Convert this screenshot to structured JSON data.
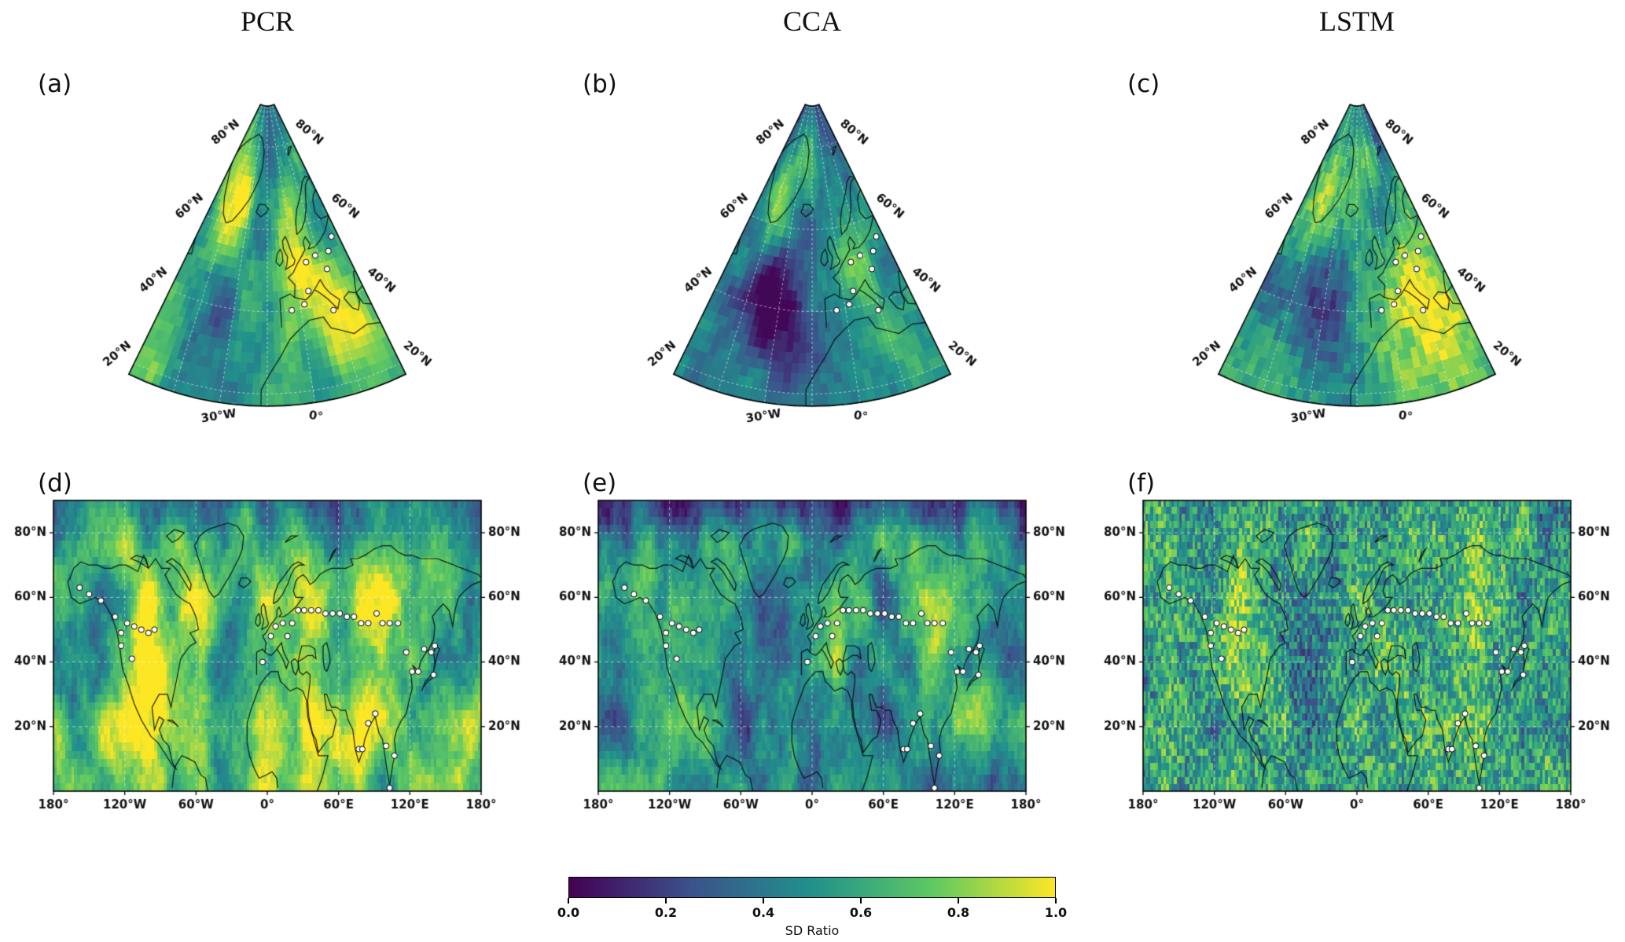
{
  "figure": {
    "column_titles": [
      "PCR",
      "CCA",
      "LSTM"
    ],
    "panel_letters": [
      "(a)",
      "(b)",
      "(c)",
      "(d)",
      "(e)",
      "(f)"
    ],
    "conic_axis": {
      "lat_labels": [
        "80°N",
        "60°N",
        "40°N",
        "20°N"
      ],
      "lat_values": [
        80,
        60,
        40,
        20
      ],
      "lon_labels": [
        "30°W",
        "0°"
      ],
      "lon_values": [
        -30,
        0
      ],
      "grid_lons": [
        -60,
        -45,
        -30,
        -15,
        0,
        15,
        30
      ],
      "grid_lats": [
        20,
        40,
        60,
        80
      ]
    },
    "rect_axis": {
      "lat_labels": [
        "80°N",
        "60°N",
        "40°N",
        "20°N"
      ],
      "lat_values": [
        80,
        60,
        40,
        20
      ],
      "lon_labels": [
        "180°",
        "120°W",
        "60°W",
        "0°",
        "60°E",
        "120°E",
        "180°"
      ],
      "lon_values": [
        -180,
        -120,
        -60,
        0,
        60,
        120,
        180
      ],
      "grid_lons": [
        -120,
        -60,
        0,
        60,
        120
      ],
      "grid_lats": [
        20,
        40,
        60,
        80
      ]
    },
    "colorbar": {
      "label": "SD Ratio",
      "tick_labels": [
        "0.0",
        "0.2",
        "0.4",
        "0.6",
        "0.8",
        "1.0"
      ],
      "tick_values": [
        0,
        0.2,
        0.4,
        0.6,
        0.8,
        1
      ],
      "colors": [
        "#440154",
        "#3b528b",
        "#21918c",
        "#5ec962",
        "#fde725"
      ]
    }
  },
  "chart_data": {
    "type": "heatmap",
    "variable": "SD Ratio",
    "colormap": "viridis",
    "value_range": [
      0,
      1
    ],
    "colorbar_ticks": [
      0.0,
      0.2,
      0.4,
      0.6,
      0.8,
      1.0
    ],
    "layout": "2 rows x 3 columns; top row conic (North Atlantic / Europe sector) maps, bottom row global 0-90N equirectangular maps; one shared horizontal colorbar at bottom center",
    "columns": [
      "PCR",
      "CCA",
      "LSTM"
    ],
    "panels": [
      {
        "id": "a",
        "row": "top",
        "method": "PCR",
        "projection": "conic, lon 60W-30E, lat ~20N-90N",
        "description": "Mostly teal-green SD ratio 0.5-0.7; yellow maxima (0.9-1.0) along SE Greenland and over central Europe / western Mediterranean; weak darker patch (0.35-0.45) in subtropical NE Atlantic."
      },
      {
        "id": "b",
        "row": "top",
        "method": "CCA",
        "projection": "conic, lon 60W-30E, lat ~20N-90N",
        "description": "Pronounced dark purple-blue minimum (0.1-0.3) in the central North Atlantic; yellow band (0.85-1.0) over central Europe and Mediterranean; teal elsewhere."
      },
      {
        "id": "c",
        "row": "top",
        "method": "LSTM",
        "projection": "conic, lon 60W-30E, lat ~20N-90N",
        "description": "Dark blue minimum (0.2-0.4) west of Iberia; yellow maxima over Europe and Mediterranean; field slightly noisier than PCR/CCA."
      },
      {
        "id": "d",
        "row": "bottom",
        "method": "PCR",
        "projection": "equirectangular, lon 180W-180E, lat 0-90N",
        "description": "Largely yellow (0.8-1.0) over continents and tropics; teal-blue patches (0.4-0.6) over N Pacific, N Atlantic and the Arctic cap."
      },
      {
        "id": "e",
        "row": "bottom",
        "method": "CCA",
        "projection": "equirectangular, lon 180W-180E, lat 0-90N",
        "description": "Predominantly teal-blue (0.4-0.7); yellow patches over western North America, Europe and East Asia; dark band over the Arctic."
      },
      {
        "id": "f",
        "row": "bottom",
        "method": "LSTM",
        "projection": "equirectangular, lon 180W-180E, lat 0-90N",
        "description": "Fine-grained speckled green-yellow field (0.5-0.9) with scattered teal cells; much noisier texture than panels d and e."
      }
    ],
    "station_markers": {
      "style": "small white circles with thin black outline",
      "conic_lonlat": [
        [
          -4,
          40
        ],
        [
          2,
          41
        ],
        [
          5,
          44
        ],
        [
          7,
          51
        ],
        [
          13,
          52
        ],
        [
          17,
          48
        ],
        [
          21,
          52
        ],
        [
          26,
          55
        ],
        [
          14,
          38
        ]
      ],
      "rect_lonlat": [
        [
          -158,
          63
        ],
        [
          -150,
          61
        ],
        [
          -140,
          59
        ],
        [
          -128,
          54
        ],
        [
          -123,
          49
        ],
        [
          -118,
          52
        ],
        [
          -112,
          51
        ],
        [
          -106,
          50
        ],
        [
          -100,
          49
        ],
        [
          -95,
          50
        ],
        [
          -123,
          45
        ],
        [
          -114,
          41
        ],
        [
          -4,
          40
        ],
        [
          3,
          48
        ],
        [
          7,
          51
        ],
        [
          13,
          52
        ],
        [
          17,
          48
        ],
        [
          21,
          52
        ],
        [
          26,
          56
        ],
        [
          31,
          56
        ],
        [
          37,
          56
        ],
        [
          43,
          56
        ],
        [
          49,
          55
        ],
        [
          55,
          55
        ],
        [
          61,
          55
        ],
        [
          67,
          54
        ],
        [
          73,
          54
        ],
        [
          79,
          52
        ],
        [
          85,
          52
        ],
        [
          92,
          55
        ],
        [
          97,
          52
        ],
        [
          103,
          52
        ],
        [
          110,
          52
        ],
        [
          117,
          43
        ],
        [
          122,
          37
        ],
        [
          127,
          37
        ],
        [
          132,
          44
        ],
        [
          138,
          43
        ],
        [
          141,
          45
        ],
        [
          140,
          36
        ],
        [
          77,
          13
        ],
        [
          80,
          13
        ],
        [
          85,
          21
        ],
        [
          91,
          24
        ],
        [
          100,
          14
        ],
        [
          103,
          1
        ],
        [
          107,
          11
        ]
      ]
    }
  }
}
